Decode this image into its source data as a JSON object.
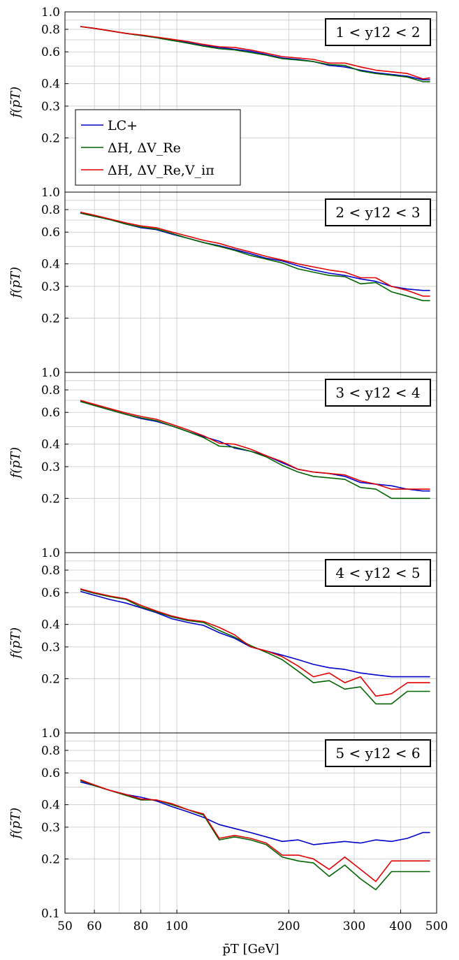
{
  "chart_data": {
    "type": "line",
    "xscale": "log",
    "yscale": "log",
    "xlim": [
      50,
      500
    ],
    "ylim": [
      0.1,
      1.0
    ],
    "grid": true,
    "xlabel": "p̄T [GeV]",
    "ylabel": "f(p̄T)",
    "xticks": [
      50,
      60,
      80,
      100,
      200,
      300,
      400,
      500
    ],
    "xtick_labels": [
      "50",
      "60",
      "80",
      "100",
      "200",
      "300",
      "400",
      "500"
    ],
    "yticks": [
      0.1,
      0.2,
      0.3,
      0.4,
      0.6,
      0.8,
      1.0
    ],
    "ytick_labels": [
      "0.1",
      "0.2",
      "0.3",
      "0.4",
      "0.6",
      "0.8",
      "1.0"
    ],
    "legend": {
      "placement": "left, first panel",
      "entries": [
        {
          "label": "LC+",
          "color": "#0000cc"
        },
        {
          "label": "ΔH, ΔV_Re",
          "color": "#006400"
        },
        {
          "label": "ΔH, ΔV_Re,V_iπ",
          "color": "#e00000"
        }
      ]
    },
    "x": [
      55,
      60,
      66,
      73,
      80,
      88,
      97,
      107,
      118,
      130,
      143,
      158,
      174,
      192,
      212,
      233,
      257,
      283,
      312,
      343,
      378,
      417,
      459,
      480
    ],
    "panels": [
      {
        "label": "1 < y12 < 2",
        "series": [
          {
            "name": "LC+",
            "color": "#0000cc",
            "values": [
              0.83,
              0.81,
              0.785,
              0.76,
              0.74,
              0.72,
              0.695,
              0.675,
              0.65,
              0.635,
              0.62,
              0.605,
              0.58,
              0.555,
              0.545,
              0.53,
              0.505,
              0.495,
              0.475,
              0.46,
              0.45,
              0.44,
              0.42,
              0.42
            ]
          },
          {
            "name": "ΔH, ΔV_Re",
            "color": "#006400",
            "values": [
              0.83,
              0.81,
              0.785,
              0.76,
              0.74,
              0.72,
              0.695,
              0.67,
              0.645,
              0.625,
              0.615,
              0.595,
              0.575,
              0.55,
              0.54,
              0.53,
              0.51,
              0.505,
              0.47,
              0.455,
              0.445,
              0.435,
              0.41,
              0.41
            ]
          },
          {
            "name": "ΔH, ΔV_Re,V_iπ",
            "color": "#e00000",
            "values": [
              0.83,
              0.81,
              0.785,
              0.76,
              0.745,
              0.725,
              0.705,
              0.685,
              0.66,
              0.64,
              0.635,
              0.615,
              0.59,
              0.565,
              0.555,
              0.545,
              0.52,
              0.52,
              0.495,
              0.475,
              0.465,
              0.455,
              0.425,
              0.43
            ]
          }
        ]
      },
      {
        "label": "2 < y12 < 3",
        "series": [
          {
            "name": "LC+",
            "color": "#0000cc",
            "values": [
              0.765,
              0.735,
              0.705,
              0.665,
              0.635,
              0.62,
              0.585,
              0.555,
              0.525,
              0.505,
              0.48,
              0.455,
              0.43,
              0.415,
              0.39,
              0.37,
              0.355,
              0.345,
              0.33,
              0.32,
              0.3,
              0.29,
              0.285,
              0.285
            ]
          },
          {
            "name": "ΔH, ΔV_Re",
            "color": "#006400",
            "values": [
              0.765,
              0.735,
              0.705,
              0.665,
              0.64,
              0.625,
              0.59,
              0.555,
              0.525,
              0.5,
              0.475,
              0.445,
              0.425,
              0.405,
              0.375,
              0.36,
              0.345,
              0.34,
              0.31,
              0.315,
              0.28,
              0.265,
              0.25,
              0.25
            ]
          },
          {
            "name": "ΔH, ΔV_Re,V_iπ",
            "color": "#e00000",
            "values": [
              0.775,
              0.745,
              0.71,
              0.675,
              0.65,
              0.635,
              0.6,
              0.57,
              0.54,
              0.52,
              0.49,
              0.465,
              0.44,
              0.42,
              0.4,
              0.385,
              0.37,
              0.36,
              0.335,
              0.335,
              0.3,
              0.285,
              0.265,
              0.265
            ]
          }
        ]
      },
      {
        "label": "3 < y12 < 4",
        "series": [
          {
            "name": "LC+",
            "color": "#0000cc",
            "values": [
              0.69,
              0.655,
              0.62,
              0.585,
              0.555,
              0.535,
              0.505,
              0.47,
              0.44,
              0.415,
              0.38,
              0.365,
              0.345,
              0.315,
              0.29,
              0.28,
              0.275,
              0.265,
              0.245,
              0.24,
              0.235,
              0.225,
              0.22,
              0.22
            ]
          },
          {
            "name": "ΔH, ΔV_Re",
            "color": "#006400",
            "values": [
              0.69,
              0.655,
              0.62,
              0.585,
              0.56,
              0.54,
              0.505,
              0.47,
              0.435,
              0.39,
              0.385,
              0.365,
              0.34,
              0.305,
              0.28,
              0.265,
              0.26,
              0.255,
              0.23,
              0.225,
              0.2,
              0.2,
              0.2,
              0.2
            ]
          },
          {
            "name": "ΔH, ΔV_Re,V_iπ",
            "color": "#e00000",
            "values": [
              0.7,
              0.665,
              0.63,
              0.595,
              0.57,
              0.55,
              0.515,
              0.48,
              0.445,
              0.405,
              0.4,
              0.375,
              0.345,
              0.32,
              0.29,
              0.28,
              0.275,
              0.27,
              0.25,
              0.24,
              0.225,
              0.225,
              0.225,
              0.225
            ]
          }
        ]
      },
      {
        "label": "4 < y12 < 5",
        "series": [
          {
            "name": "LC+",
            "color": "#0000cc",
            "values": [
              0.61,
              0.58,
              0.55,
              0.525,
              0.495,
              0.465,
              0.43,
              0.41,
              0.395,
              0.36,
              0.335,
              0.3,
              0.285,
              0.27,
              0.255,
              0.24,
              0.23,
              0.225,
              0.215,
              0.21,
              0.205,
              0.205,
              0.205,
              0.205
            ]
          },
          {
            "name": "ΔH, ΔV_Re",
            "color": "#006400",
            "values": [
              0.625,
              0.595,
              0.57,
              0.55,
              0.5,
              0.47,
              0.44,
              0.42,
              0.41,
              0.37,
              0.34,
              0.305,
              0.28,
              0.255,
              0.22,
              0.19,
              0.195,
              0.175,
              0.18,
              0.145,
              0.145,
              0.17,
              0.17,
              0.17
            ]
          },
          {
            "name": "ΔH, ΔV_Re,V_iπ",
            "color": "#e00000",
            "values": [
              0.63,
              0.6,
              0.575,
              0.555,
              0.51,
              0.475,
              0.445,
              0.425,
              0.415,
              0.385,
              0.35,
              0.3,
              0.285,
              0.265,
              0.235,
              0.205,
              0.215,
              0.19,
              0.205,
              0.16,
              0.165,
              0.19,
              0.19,
              0.19
            ]
          }
        ]
      },
      {
        "label": "5 < y12 < 6",
        "series": [
          {
            "name": "LC+",
            "color": "#0000cc",
            "values": [
              0.535,
              0.51,
              0.48,
              0.455,
              0.44,
              0.42,
              0.39,
              0.365,
              0.34,
              0.31,
              0.295,
              0.28,
              0.265,
              0.25,
              0.255,
              0.24,
              0.245,
              0.25,
              0.245,
              0.255,
              0.25,
              0.26,
              0.28,
              0.28
            ]
          },
          {
            "name": "ΔH, ΔV_Re",
            "color": "#006400",
            "values": [
              0.545,
              0.51,
              0.48,
              0.45,
              0.425,
              0.425,
              0.4,
              0.375,
              0.35,
              0.255,
              0.265,
              0.255,
              0.24,
              0.205,
              0.195,
              0.19,
              0.16,
              0.185,
              0.155,
              0.135,
              0.17,
              0.17,
              0.17,
              0.17
            ]
          },
          {
            "name": "ΔH, ΔV_Re,V_iπ",
            "color": "#e00000",
            "values": [
              0.55,
              0.515,
              0.48,
              0.455,
              0.43,
              0.425,
              0.405,
              0.375,
              0.355,
              0.26,
              0.27,
              0.26,
              0.245,
              0.21,
              0.21,
              0.2,
              0.175,
              0.205,
              0.175,
              0.15,
              0.195,
              0.195,
              0.195,
              0.195
            ]
          }
        ]
      }
    ]
  }
}
